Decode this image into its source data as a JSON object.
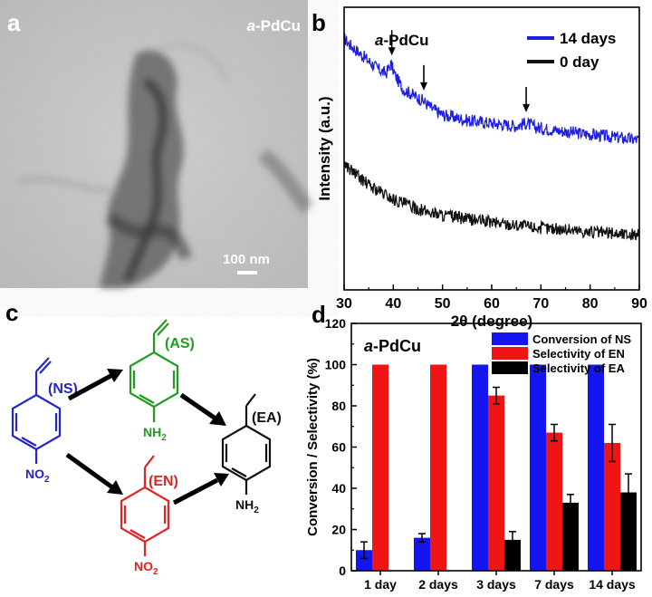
{
  "panels": {
    "a": {
      "letter": "a",
      "label_prefix": "a",
      "label_suffix": "-PdCu",
      "scale_bar": "100 nm"
    },
    "b": {
      "letter": "b"
    },
    "c": {
      "letter": "c"
    },
    "d": {
      "letter": "d"
    }
  },
  "molecules": {
    "ns": {
      "label": "(NS)",
      "sub": "NO",
      "sub_index": "2",
      "color": "#2626c8"
    },
    "as": {
      "label": "(AS)",
      "sub": "NH",
      "sub_index": "2",
      "color": "#1e9e1e"
    },
    "en": {
      "label": "(EN)",
      "sub": "NO",
      "sub_index": "2",
      "color": "#e02424"
    },
    "ea": {
      "label": "(EA)",
      "sub": "NH",
      "sub_index": "2",
      "color": "#111111"
    }
  },
  "chart_data": [
    {
      "type": "line",
      "inset_label_prefix": "a",
      "inset_label_suffix": "-PdCu",
      "xlabel": "2θ (degree)",
      "ylabel": "Intensity (a.u.)",
      "xlim": [
        30,
        90
      ],
      "xticks": [
        "30",
        "40",
        "50",
        "60",
        "70",
        "80",
        "90"
      ],
      "series": [
        {
          "name": "14 days",
          "color": "#1f1fe0",
          "x": [
            30,
            31,
            33,
            35,
            37,
            38.5,
            39.5,
            40.5,
            42,
            44,
            46,
            48,
            50,
            55,
            60,
            65,
            67,
            69,
            75,
            80,
            85,
            90
          ],
          "y": [
            8.9,
            8.7,
            8.4,
            8.1,
            7.8,
            7.65,
            8.0,
            7.55,
            7.1,
            6.9,
            6.7,
            6.4,
            6.2,
            6.0,
            5.9,
            5.8,
            5.9,
            5.75,
            5.6,
            5.5,
            5.4,
            5.3
          ]
        },
        {
          "name": "0 day",
          "color": "#111111",
          "x": [
            30,
            31,
            33,
            35,
            38,
            40,
            43,
            46,
            50,
            55,
            60,
            65,
            70,
            75,
            80,
            85,
            90
          ],
          "y": [
            4.5,
            4.3,
            4.0,
            3.7,
            3.4,
            3.2,
            3.0,
            2.8,
            2.65,
            2.5,
            2.4,
            2.3,
            2.2,
            2.15,
            2.05,
            2.0,
            1.95
          ]
        }
      ],
      "peak_markers_x": [
        39.7,
        46.2,
        67.0
      ]
    },
    {
      "type": "bar",
      "inset_label_prefix": "a",
      "inset_label_suffix": "-PdCu",
      "ylabel": "Conversion / Selectivity (%)",
      "ylim": [
        0,
        120
      ],
      "yticks": [
        "0",
        "20",
        "40",
        "60",
        "80",
        "100",
        "120"
      ],
      "categories": [
        "1 day",
        "2 days",
        "3 days",
        "7 days",
        "14 days"
      ],
      "legend_position": "top-right",
      "series": [
        {
          "name": "Conversion of NS",
          "color": "#1515f0",
          "values": [
            10,
            16,
            100,
            100,
            100
          ],
          "errors": [
            4,
            2,
            0,
            0,
            0
          ]
        },
        {
          "name": "Selectivity of EN",
          "color": "#f01515",
          "values": [
            100,
            100,
            85,
            67,
            62
          ],
          "errors": [
            0,
            0,
            4,
            4,
            9
          ]
        },
        {
          "name": "Selectivity of EA",
          "color": "#000000",
          "values": [
            0,
            0,
            15,
            33,
            38
          ],
          "errors": [
            0,
            0,
            4,
            4,
            9
          ]
        }
      ]
    }
  ]
}
